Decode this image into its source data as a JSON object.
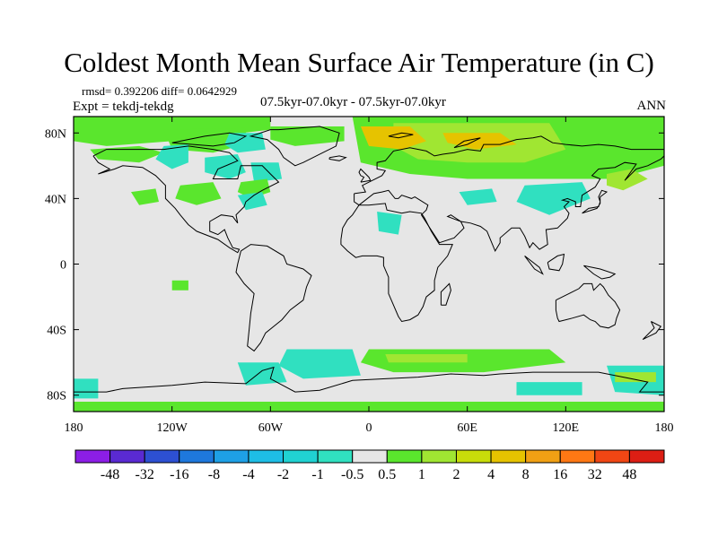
{
  "title": "Coldest Month Mean Surface Air Temperature (in C)",
  "stats": "rmsd= 0.392206 diff= 0.0642929",
  "expt": "Expt = tekdj-tekdg",
  "subtitle": "07.5kyr-07.0kyr - 07.5kyr-07.0kyr",
  "season": "ANN",
  "chart_data": {
    "type": "heatmap",
    "projection": "cylindrical-equidistant",
    "lon_range": [
      -180,
      180
    ],
    "lat_range": [
      -90,
      90
    ],
    "x_ticks": [
      {
        "lon": -180,
        "label": "180"
      },
      {
        "lon": -120,
        "label": "120W"
      },
      {
        "lon": -60,
        "label": "60W"
      },
      {
        "lon": 0,
        "label": "0"
      },
      {
        "lon": 60,
        "label": "60E"
      },
      {
        "lon": 120,
        "label": "120E"
      },
      {
        "lon": 180,
        "label": "180"
      }
    ],
    "y_ticks": [
      {
        "lat": 80,
        "label": "80N"
      },
      {
        "lat": 40,
        "label": "40N"
      },
      {
        "lat": 0,
        "label": "0"
      },
      {
        "lat": -40,
        "label": "40S"
      },
      {
        "lat": -80,
        "label": "80S"
      }
    ],
    "colorbar": {
      "boundaries": [
        "-48",
        "-32",
        "-16",
        "-8",
        "-4",
        "-2",
        "-1",
        "-0.5",
        "0.5",
        "1",
        "2",
        "4",
        "8",
        "16",
        "32",
        "48"
      ],
      "colors": [
        "#8c1ee6",
        "#5a2ad2",
        "#2d50d2",
        "#1e78dc",
        "#1ea0e6",
        "#1ebee6",
        "#20d2d2",
        "#30e0c0",
        "#e6e6e6",
        "#5ae62d",
        "#a0e632",
        "#c8dc0a",
        "#e6c300",
        "#f0a014",
        "#ff7814",
        "#f04614",
        "#dc1e14"
      ]
    },
    "anomaly_regions": [
      {
        "name": "arctic-north-america-green",
        "category": "0.5 to 1",
        "polygon": [
          [
            -180,
            90
          ],
          [
            -60,
            90
          ],
          [
            -60,
            82
          ],
          [
            -120,
            75
          ],
          [
            -160,
            72
          ],
          [
            -180,
            75
          ]
        ]
      },
      {
        "name": "alaska-green",
        "category": "0.5 to 1",
        "polygon": [
          [
            -170,
            70
          ],
          [
            -140,
            72
          ],
          [
            -125,
            68
          ],
          [
            -140,
            62
          ],
          [
            -165,
            64
          ]
        ]
      },
      {
        "name": "canada-arctic-green",
        "category": "0.5 to 1",
        "polygon": [
          [
            -125,
            82
          ],
          [
            -75,
            83
          ],
          [
            -75,
            73
          ],
          [
            -95,
            68
          ],
          [
            -120,
            70
          ]
        ]
      },
      {
        "name": "greenland-green",
        "category": "0.5 to 1",
        "polygon": [
          [
            -60,
            84
          ],
          [
            -15,
            84
          ],
          [
            -15,
            75
          ],
          [
            -45,
            72
          ],
          [
            -60,
            76
          ]
        ]
      },
      {
        "name": "eurasia-arctic-green",
        "category": "0.5 to 1",
        "polygon": [
          [
            -10,
            90
          ],
          [
            180,
            90
          ],
          [
            180,
            60
          ],
          [
            150,
            52
          ],
          [
            100,
            52
          ],
          [
            60,
            52
          ],
          [
            25,
            55
          ],
          [
            -5,
            62
          ]
        ]
      },
      {
        "name": "siberia-yellow",
        "category": "1 to 2",
        "polygon": [
          [
            15,
            86
          ],
          [
            110,
            86
          ],
          [
            120,
            70
          ],
          [
            95,
            62
          ],
          [
            60,
            62
          ],
          [
            30,
            64
          ],
          [
            15,
            72
          ]
        ]
      },
      {
        "name": "barents-orange",
        "category": "2 to 4",
        "polygon": [
          [
            -5,
            84
          ],
          [
            25,
            84
          ],
          [
            35,
            75
          ],
          [
            20,
            70
          ],
          [
            0,
            72
          ]
        ]
      },
      {
        "name": "taymyr-orange",
        "category": "2 to 4",
        "polygon": [
          [
            45,
            80
          ],
          [
            80,
            80
          ],
          [
            90,
            73
          ],
          [
            65,
            70
          ],
          [
            48,
            74
          ]
        ]
      },
      {
        "name": "kamchatka-yellow",
        "category": "1 to 2",
        "polygon": [
          [
            145,
            55
          ],
          [
            160,
            58
          ],
          [
            170,
            52
          ],
          [
            155,
            45
          ],
          [
            145,
            48
          ]
        ]
      },
      {
        "name": "canada-interior-cyan",
        "category": "-0.5 to -1",
        "polygon": [
          [
            -125,
            72
          ],
          [
            -110,
            73
          ],
          [
            -110,
            62
          ],
          [
            -120,
            58
          ],
          [
            -130,
            64
          ]
        ]
      },
      {
        "name": "hudson-cyan",
        "category": "-0.5 to -1",
        "polygon": [
          [
            -100,
            65
          ],
          [
            -80,
            67
          ],
          [
            -75,
            56
          ],
          [
            -85,
            52
          ],
          [
            -100,
            56
          ]
        ]
      },
      {
        "name": "labrador-cyan",
        "category": "-0.5 to -1",
        "polygon": [
          [
            -72,
            62
          ],
          [
            -55,
            62
          ],
          [
            -53,
            52
          ],
          [
            -70,
            50
          ]
        ]
      },
      {
        "name": "baffin-cyan",
        "category": "-0.5 to -1",
        "polygon": [
          [
            -85,
            80
          ],
          [
            -65,
            80
          ],
          [
            -63,
            70
          ],
          [
            -80,
            68
          ],
          [
            -88,
            73
          ]
        ]
      },
      {
        "name": "central-us-green",
        "category": "0.5 to 1",
        "polygon": [
          [
            -115,
            48
          ],
          [
            -95,
            50
          ],
          [
            -90,
            40
          ],
          [
            -105,
            36
          ],
          [
            -118,
            40
          ]
        ]
      },
      {
        "name": "northeast-us-green",
        "category": "0.5 to 1",
        "polygon": [
          [
            -78,
            50
          ],
          [
            -62,
            52
          ],
          [
            -60,
            44
          ],
          [
            -72,
            40
          ],
          [
            -80,
            44
          ]
        ]
      },
      {
        "name": "atlantic-cyan",
        "category": "-0.5 to -1",
        "polygon": [
          [
            -80,
            42
          ],
          [
            -65,
            44
          ],
          [
            -62,
            36
          ],
          [
            -75,
            33
          ]
        ]
      },
      {
        "name": "east-asia-cyan",
        "category": "-0.5 to -1",
        "polygon": [
          [
            95,
            48
          ],
          [
            130,
            50
          ],
          [
            135,
            40
          ],
          [
            110,
            30
          ],
          [
            90,
            38
          ]
        ]
      },
      {
        "name": "central-asia-cyan",
        "category": "-0.5 to -1",
        "polygon": [
          [
            55,
            44
          ],
          [
            75,
            46
          ],
          [
            78,
            38
          ],
          [
            60,
            36
          ]
        ]
      },
      {
        "name": "north-africa-cyan",
        "category": "-0.5 to -1",
        "polygon": [
          [
            5,
            32
          ],
          [
            20,
            30
          ],
          [
            18,
            18
          ],
          [
            6,
            20
          ]
        ]
      },
      {
        "name": "east-pacific-green",
        "category": "0.5 to 1",
        "polygon": [
          [
            -145,
            44
          ],
          [
            -130,
            46
          ],
          [
            -128,
            38
          ],
          [
            -140,
            36
          ]
        ]
      },
      {
        "name": "tropical-pacific-green",
        "category": "0.5 to 1",
        "polygon": [
          [
            -120,
            -10
          ],
          [
            -110,
            -10
          ],
          [
            -110,
            -16
          ],
          [
            -120,
            -16
          ]
        ]
      },
      {
        "name": "south-atlantic-cyan",
        "category": "-0.5 to -1",
        "polygon": [
          [
            -50,
            -52
          ],
          [
            -10,
            -52
          ],
          [
            -5,
            -68
          ],
          [
            -40,
            -70
          ],
          [
            -55,
            -62
          ]
        ]
      },
      {
        "name": "weddell-cyan",
        "category": "-0.5 to -1",
        "polygon": [
          [
            -80,
            -60
          ],
          [
            -55,
            -60
          ],
          [
            -50,
            -72
          ],
          [
            -75,
            -74
          ]
        ]
      },
      {
        "name": "southern-ocean-green",
        "category": "0.5 to 1",
        "polygon": [
          [
            0,
            -52
          ],
          [
            110,
            -52
          ],
          [
            120,
            -60
          ],
          [
            70,
            -66
          ],
          [
            15,
            -66
          ],
          [
            -5,
            -60
          ]
        ]
      },
      {
        "name": "southern-ocean-yellow",
        "category": "1 to 2",
        "polygon": [
          [
            10,
            -55
          ],
          [
            60,
            -55
          ],
          [
            60,
            -60
          ],
          [
            12,
            -60
          ]
        ]
      },
      {
        "name": "ross-cyan",
        "category": "-0.5 to -1",
        "polygon": [
          [
            145,
            -62
          ],
          [
            180,
            -62
          ],
          [
            180,
            -80
          ],
          [
            150,
            -78
          ]
        ]
      },
      {
        "name": "amundsen-cyan",
        "category": "-0.5 to -1",
        "polygon": [
          [
            -180,
            -70
          ],
          [
            -165,
            -70
          ],
          [
            -165,
            -82
          ],
          [
            -180,
            -82
          ]
        ]
      },
      {
        "name": "antarctica-cyan",
        "category": "-0.5 to -1",
        "polygon": [
          [
            90,
            -72
          ],
          [
            130,
            -72
          ],
          [
            130,
            -80
          ],
          [
            90,
            -80
          ]
        ]
      },
      {
        "name": "antarctica-green",
        "category": "0.5 to 1",
        "polygon": [
          [
            -180,
            -84
          ],
          [
            180,
            -84
          ],
          [
            180,
            -90
          ],
          [
            -180,
            -90
          ]
        ]
      },
      {
        "name": "east-antarctica-yellow",
        "category": "1 to 2",
        "polygon": [
          [
            150,
            -66
          ],
          [
            175,
            -66
          ],
          [
            175,
            -72
          ],
          [
            150,
            -72
          ]
        ]
      }
    ]
  }
}
